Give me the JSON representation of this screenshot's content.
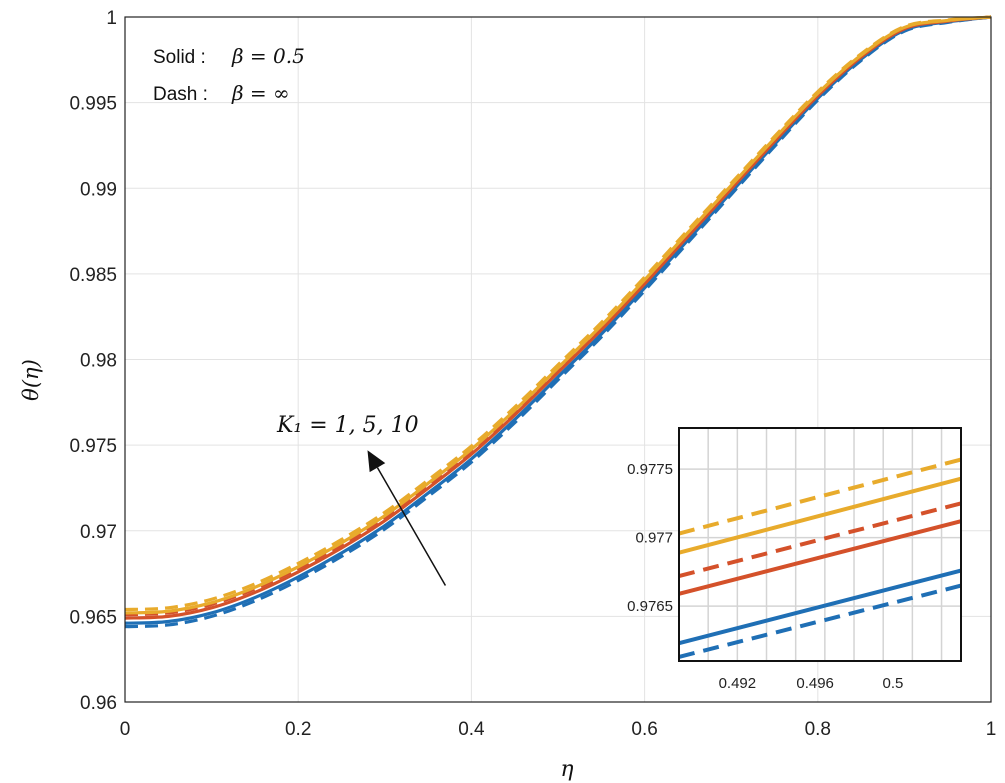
{
  "chart_data": {
    "type": "line",
    "xlabel": "η",
    "ylabel": "θ(η)",
    "xlim": [
      0,
      1
    ],
    "ylim": [
      0.96,
      1
    ],
    "xticks": [
      0,
      0.2,
      0.4,
      0.6,
      0.8,
      1
    ],
    "xtick_labels": [
      "0",
      "0.2",
      "0.4",
      "0.6",
      "0.8",
      "1"
    ],
    "yticks": [
      0.96,
      0.965,
      0.97,
      0.975,
      0.98,
      0.985,
      0.99,
      0.995,
      1
    ],
    "ytick_labels": [
      "0.96",
      "0.965",
      "0.97",
      "0.975",
      "0.98",
      "0.985",
      "0.99",
      "0.995",
      "1"
    ],
    "grid": true,
    "legend": {
      "solid_label": "Solid :",
      "solid_beta": "β = 0.5",
      "dash_label": "Dash :",
      "dash_beta": "β = ∞"
    },
    "annotation": {
      "text": "K₁ = 1, 5, 10",
      "arrow_from": [
        0.37,
        0.9668
      ],
      "arrow_to": [
        0.28,
        0.9747
      ]
    },
    "colors": {
      "K1_1": "#1f6fb5",
      "K1_5": "#d4512a",
      "K1_10": "#e8ab2c"
    },
    "x": [
      0,
      0.05,
      0.1,
      0.15,
      0.2,
      0.25,
      0.3,
      0.35,
      0.4,
      0.45,
      0.5,
      0.55,
      0.6,
      0.65,
      0.7,
      0.75,
      0.8,
      0.85,
      0.9,
      0.95,
      1
    ],
    "base_curve": [
      0.9645,
      0.9646,
      0.9651,
      0.966,
      0.9672,
      0.9686,
      0.9702,
      0.9721,
      0.9741,
      0.9764,
      0.9789,
      0.9814,
      0.9841,
      0.9869,
      0.9897,
      0.9925,
      0.9952,
      0.9975,
      0.9992,
      0.9997,
      1.0
    ],
    "series": [
      {
        "name": "K1 = 1, β = 0.5",
        "K1": "1",
        "style": "solid",
        "offset": 0.0001
      },
      {
        "name": "K1 = 1, β = ∞",
        "K1": "1",
        "style": "dash",
        "offset": -0.0001
      },
      {
        "name": "K1 = 5, β = 0.5",
        "K1": "5",
        "style": "solid",
        "offset": 0.0004
      },
      {
        "name": "K1 = 5, β = ∞",
        "K1": "5",
        "style": "dash",
        "offset": 0.0006
      },
      {
        "name": "K1 = 10, β = 0.5",
        "K1": "10",
        "style": "solid",
        "offset": 0.0007
      },
      {
        "name": "K1 = 10, β = ∞",
        "K1": "10",
        "style": "dash",
        "offset": 0.0009
      }
    ],
    "inset": {
      "xlim": [
        0.489,
        0.5035
      ],
      "ylim": [
        0.9761,
        0.9778
      ],
      "xticks": [
        0.492,
        0.496,
        0.5
      ],
      "xtick_labels": [
        "0.492",
        "0.496",
        "0.5"
      ],
      "yticks": [
        0.9765,
        0.977,
        0.9775
      ],
      "ytick_labels": [
        "0.9765",
        "0.977",
        "0.9775"
      ],
      "grid_x": [
        0.4905,
        0.492,
        0.4935,
        0.495,
        0.4965,
        0.498,
        0.4995,
        0.501,
        0.5025
      ],
      "grid_y": [
        0.9765,
        0.977,
        0.9775
      ],
      "lines": [
        {
          "K1": "10",
          "style": "dash",
          "y": [
            0.97703,
            0.97757
          ]
        },
        {
          "K1": "10",
          "style": "solid",
          "y": [
            0.97689,
            0.97743
          ]
        },
        {
          "K1": "5",
          "style": "dash",
          "y": [
            0.97672,
            0.97725
          ]
        },
        {
          "K1": "5",
          "style": "solid",
          "y": [
            0.97659,
            0.97712
          ]
        },
        {
          "K1": "1",
          "style": "solid",
          "y": [
            0.97623,
            0.97676
          ]
        },
        {
          "K1": "1",
          "style": "dash",
          "y": [
            0.97613,
            0.97665
          ]
        }
      ]
    }
  }
}
